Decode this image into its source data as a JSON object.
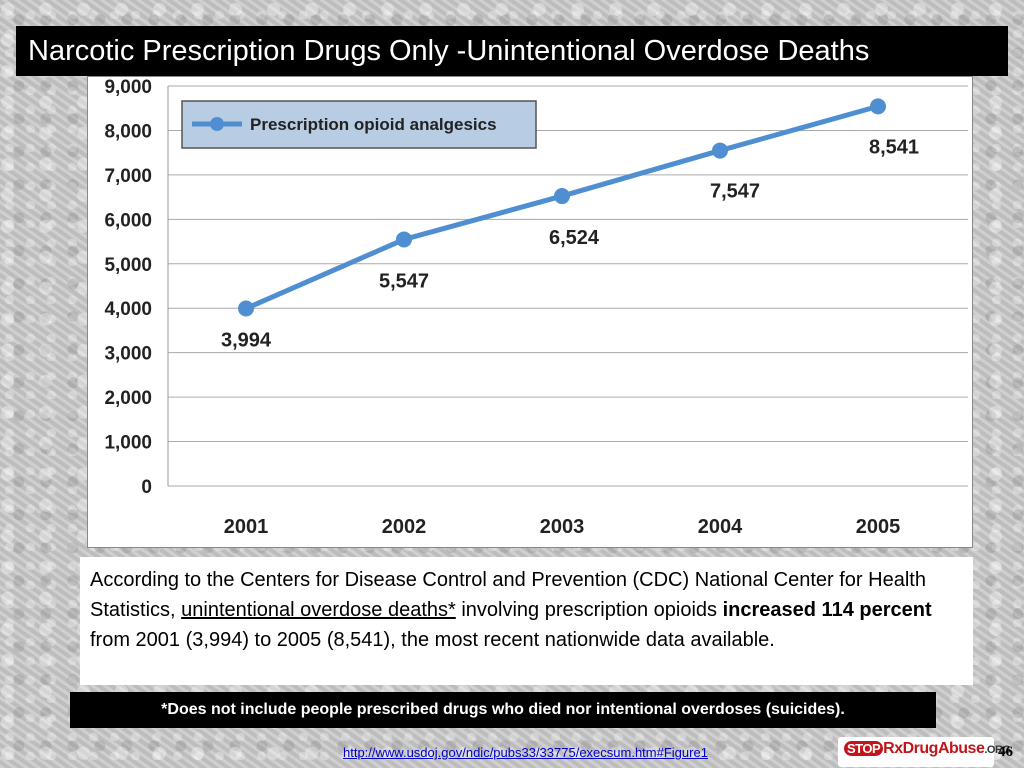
{
  "slide": {
    "title": "Narcotic Prescription Drugs Only -Unintentional Overdose Deaths",
    "description": {
      "part1": "According to the Centers for Disease Control and Prevention (CDC) National Center for Health Statistics, ",
      "underlined": "unintentional overdose deaths*",
      "part2": " involving prescription opioids ",
      "bold": "increased 114 percent",
      "part3": " from 2001 (3,994) to 2005 (8,541), the most recent nationwide data available."
    },
    "footnote": "*Does not include people prescribed drugs who died nor intentional overdoses (suicides).",
    "source_url": "http://www.usdoj.gov/ndic/pubs33/33775/execsum.htm#Figure1",
    "logo": {
      "stop": "STOP",
      "rx": "RxDrugAbuse",
      "org": ".ORG"
    },
    "page_number": "46"
  },
  "chart_data": {
    "type": "line",
    "title": "",
    "xlabel": "",
    "ylabel": "",
    "categories": [
      "2001",
      "2002",
      "2003",
      "2004",
      "2005"
    ],
    "series": [
      {
        "name": "Prescription opioid analgesics",
        "values": [
          3994,
          5547,
          6524,
          7547,
          8541
        ],
        "data_labels": [
          "3,994",
          "5,547",
          "6,524",
          "7,547",
          "8,541"
        ]
      }
    ],
    "ylim": [
      0,
      9000
    ],
    "yticks": [
      0,
      1000,
      2000,
      3000,
      4000,
      5000,
      6000,
      7000,
      8000,
      9000
    ],
    "ytick_labels": [
      "0",
      "1,000",
      "2,000",
      "3,000",
      "4,000",
      "5,000",
      "6,000",
      "7,000",
      "8,000",
      "9,000"
    ],
    "grid": true,
    "legend_position": "top-left",
    "colors": {
      "line": "#4f8fd1",
      "legend_bg": "#b8cde3",
      "grid": "#aaaaaa"
    }
  }
}
